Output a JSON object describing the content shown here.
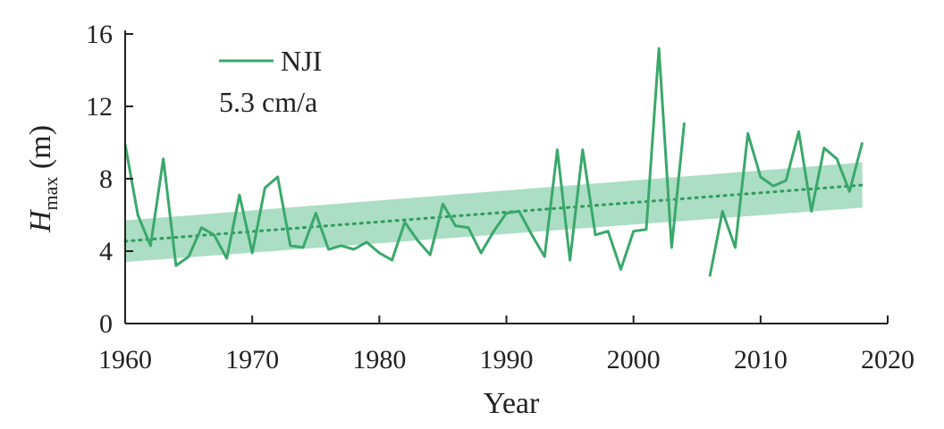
{
  "chart_data": {
    "type": "line",
    "xlabel": "Year",
    "ylabel_main": "H",
    "ylabel_sub": "max",
    "ylabel_unit": " (m)",
    "xlim": [
      1960,
      2020
    ],
    "ylim": [
      0,
      16
    ],
    "xticks": [
      1960,
      1970,
      1980,
      1990,
      2000,
      2010,
      2020
    ],
    "yticks": [
      0,
      4,
      8,
      12,
      16
    ],
    "grid": false,
    "legend_position": "top-left",
    "series": [
      {
        "name": "NJI",
        "color": "#3aa86b",
        "x": [
          1960,
          1961,
          1962,
          1963,
          1964,
          1965,
          1966,
          1967,
          1968,
          1969,
          1970,
          1971,
          1972,
          1973,
          1974,
          1975,
          1976,
          1977,
          1978,
          1979,
          1980,
          1981,
          1982,
          1983,
          1984,
          1985,
          1986,
          1987,
          1988,
          1989,
          1990,
          1991,
          1992,
          1993,
          1994,
          1995,
          1996,
          1997,
          1998,
          1999,
          2000,
          2001,
          2002,
          2003,
          2004,
          2005,
          2006,
          2007,
          2008,
          2009,
          2010,
          2011,
          2012,
          2013,
          2014,
          2015,
          2016,
          2017,
          2018
        ],
        "y": [
          9.9,
          6.0,
          4.3,
          9.1,
          3.2,
          3.7,
          5.3,
          4.9,
          3.6,
          7.1,
          3.9,
          7.5,
          8.1,
          4.3,
          4.2,
          6.1,
          4.1,
          4.3,
          4.1,
          4.5,
          3.9,
          3.5,
          5.6,
          4.6,
          3.8,
          6.6,
          5.4,
          5.3,
          3.9,
          5.1,
          6.1,
          6.2,
          4.9,
          3.7,
          9.6,
          3.5,
          9.6,
          4.9,
          5.1,
          3.0,
          5.1,
          5.2,
          15.2,
          4.2,
          11.1,
          null,
          2.6,
          6.2,
          4.2,
          10.5,
          8.1,
          7.6,
          7.9,
          10.6,
          6.2,
          9.7,
          9.1,
          7.3,
          10.0
        ]
      }
    ],
    "trend": {
      "label": "5.3 cm/a",
      "start": [
        1960,
        4.55
      ],
      "end": [
        2018,
        7.65
      ],
      "band_lower": [
        3.4,
        6.4
      ],
      "band_upper": [
        5.7,
        8.9
      ],
      "color": "#2e9b5e",
      "band_color": "#8fd3b0"
    }
  }
}
